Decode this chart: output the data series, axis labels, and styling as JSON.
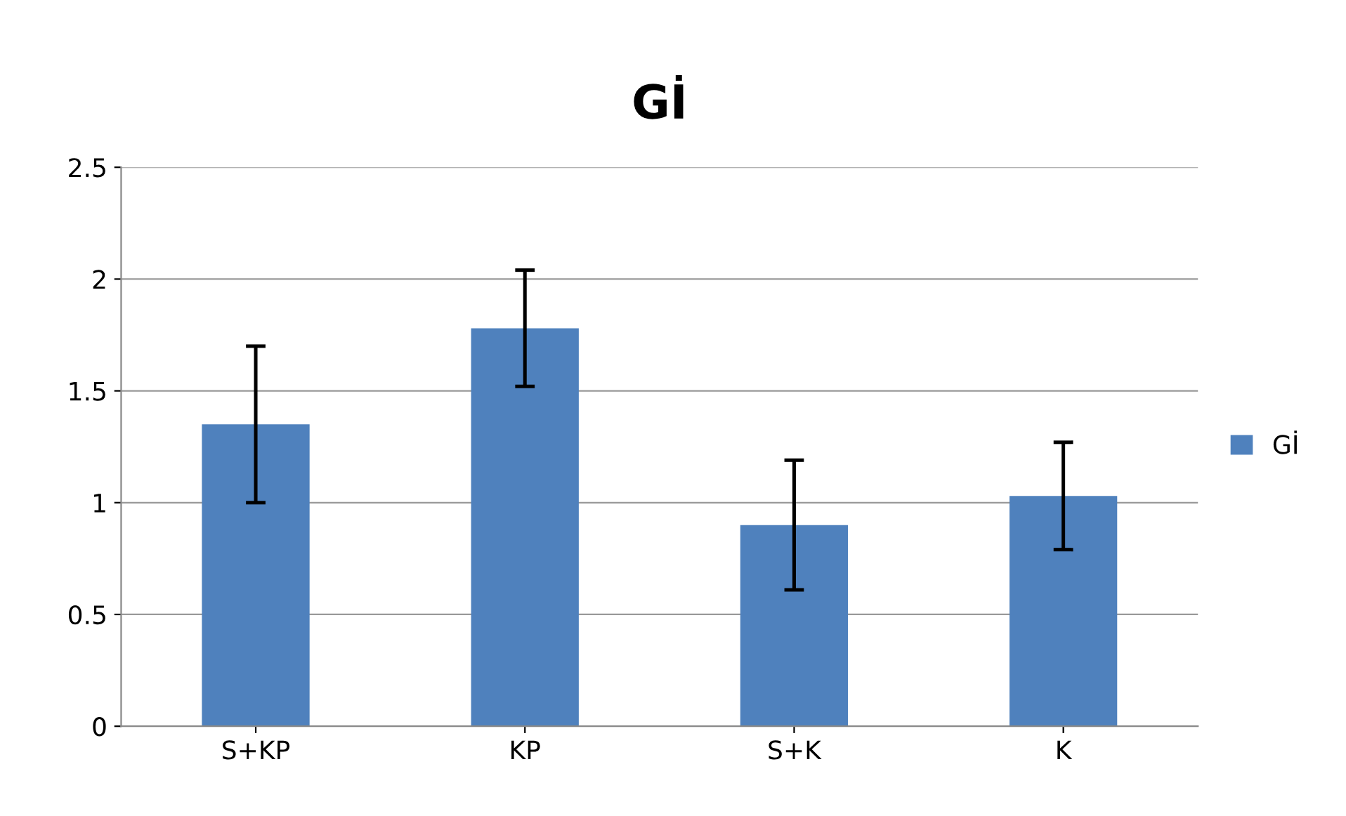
{
  "chart_data": {
    "type": "bar",
    "title": "Gİ",
    "categories": [
      "S+KP",
      "KP",
      "S+K",
      "K"
    ],
    "series": [
      {
        "name": "Gİ",
        "color": "#4f81bd",
        "values": [
          1.35,
          1.78,
          0.9,
          1.03
        ],
        "errors": [
          0.35,
          0.26,
          0.29,
          0.24
        ]
      }
    ],
    "ylim": [
      0,
      2.5
    ],
    "yticks": [
      0,
      0.5,
      1,
      1.5,
      2,
      2.5
    ],
    "grid": "y",
    "legend": "right"
  }
}
